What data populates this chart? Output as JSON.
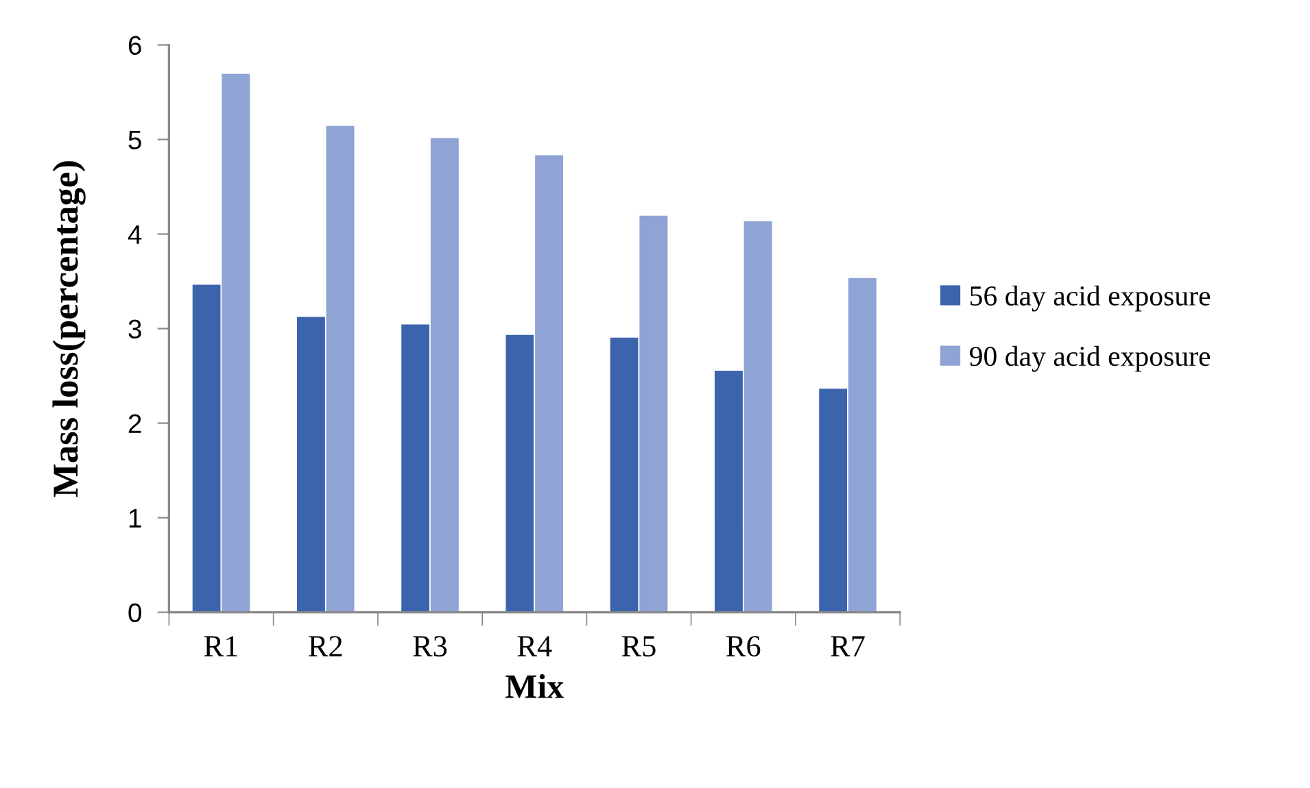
{
  "chart_data": {
    "type": "bar",
    "xlabel": "Mix",
    "ylabel": "Mass loss(percentage)",
    "categories": [
      "R1",
      "R2",
      "R3",
      "R4",
      "R5",
      "R6",
      "R7"
    ],
    "series": [
      {
        "name": "56 day acid exposure",
        "color": "#3c64ad",
        "values": [
          3.47,
          3.13,
          3.05,
          2.94,
          2.91,
          2.56,
          2.37
        ]
      },
      {
        "name": "90 day acid exposure",
        "color": "#8fa4d4",
        "values": [
          5.7,
          5.15,
          5.02,
          4.84,
          4.2,
          4.14,
          3.54
        ]
      }
    ],
    "ylim": [
      0,
      6
    ],
    "yticks": [
      0,
      1,
      2,
      3,
      4,
      5,
      6
    ],
    "grid": false,
    "legend": "right"
  }
}
